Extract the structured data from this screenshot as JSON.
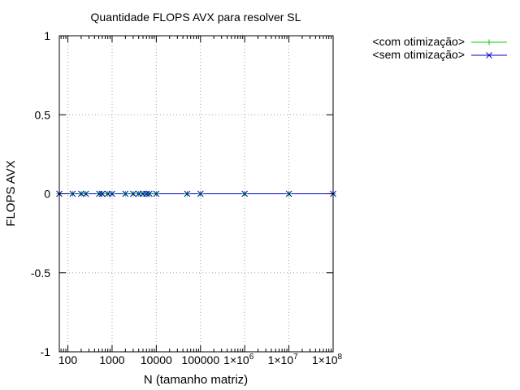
{
  "chart_data": {
    "type": "line",
    "title": "Quantidade FLOPS AVX para resolver SL",
    "xlabel": "N (tamanho matriz)",
    "ylabel": "FLOPS AVX",
    "xscale": "log",
    "xlim": [
      64,
      100000000
    ],
    "ylim": [
      -1,
      1
    ],
    "grid": true,
    "legend_position": "outside-top-right",
    "x_ticks": [
      {
        "value": 100,
        "label": "100"
      },
      {
        "value": 1000,
        "label": "1000"
      },
      {
        "value": 10000,
        "label": "10000"
      },
      {
        "value": 100000,
        "label": "100000"
      },
      {
        "value": 1000000,
        "base": "1×10",
        "exp": "6"
      },
      {
        "value": 10000000,
        "base": "1×10",
        "exp": "7"
      },
      {
        "value": 100000000,
        "base": "1×10",
        "exp": "8"
      }
    ],
    "y_ticks": [
      {
        "value": 1,
        "label": "1"
      },
      {
        "value": 0.5,
        "label": "0.5"
      },
      {
        "value": 0,
        "label": "0"
      },
      {
        "value": -0.5,
        "label": "-0.5"
      },
      {
        "value": -1,
        "label": "-1"
      }
    ],
    "x": [
      64,
      128,
      200,
      256,
      512,
      600,
      800,
      1000,
      2000,
      3000,
      4000,
      5000,
      6000,
      7000,
      10000,
      50000,
      100000,
      1000000,
      10000000,
      100000000
    ],
    "series": [
      {
        "name": "<com otimização>",
        "color": "#00cc00",
        "marker": "plus",
        "values": [
          0,
          0,
          0,
          0,
          0,
          0,
          0,
          0,
          0,
          0,
          0,
          0,
          0,
          0,
          0,
          0,
          0,
          0,
          0,
          0
        ]
      },
      {
        "name": "<sem otimização>",
        "color": "#0000cc",
        "marker": "x",
        "values": [
          0,
          0,
          0,
          0,
          0,
          0,
          0,
          0,
          0,
          0,
          0,
          0,
          0,
          0,
          0,
          0,
          0,
          0,
          0,
          0
        ]
      }
    ]
  }
}
